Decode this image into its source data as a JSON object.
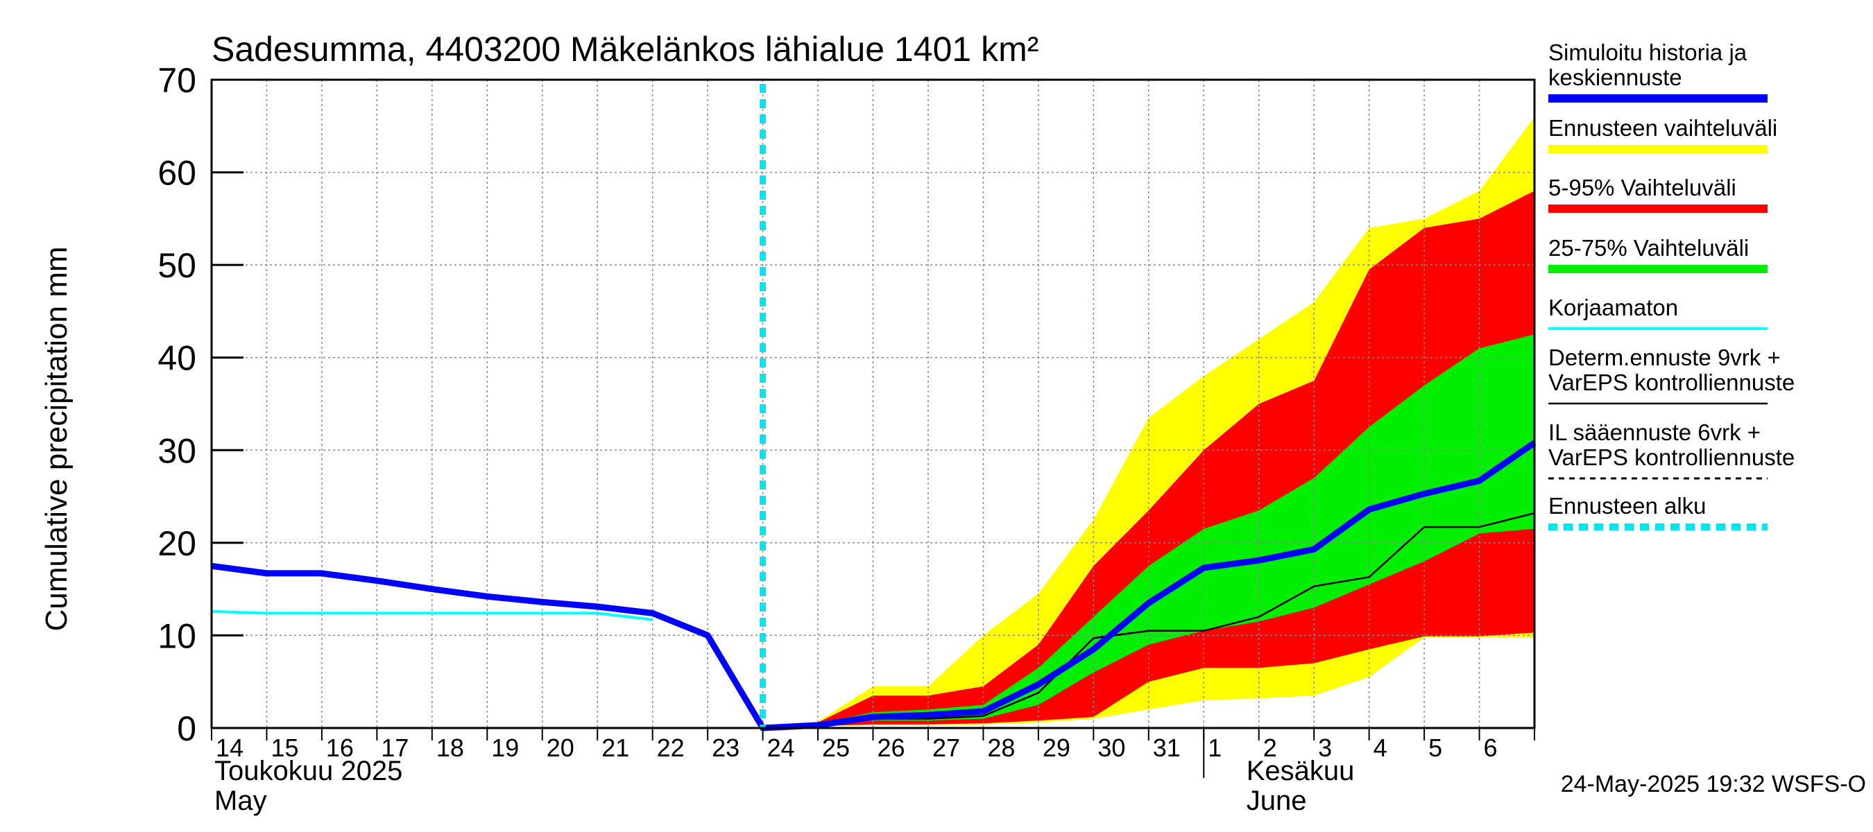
{
  "chart_data": {
    "type": "area",
    "title": "Sadesumma, 4403200 Mäkelänkos lähialue 1401 km²",
    "ylabel": "Cumulative precipitation   mm",
    "ylim": [
      0,
      70
    ],
    "yticks": [
      0,
      10,
      20,
      30,
      40,
      50,
      60,
      70
    ],
    "xlim": [
      "2025-05-14",
      "2025-06-07"
    ],
    "x_day_labels": [
      "14",
      "15",
      "16",
      "17",
      "18",
      "19",
      "20",
      "21",
      "22",
      "23",
      "24",
      "25",
      "26",
      "27",
      "28",
      "29",
      "30",
      "31",
      "1",
      "2",
      "3",
      "4",
      "5",
      "6"
    ],
    "month_labels": {
      "may_fi": "Toukokuu  2025",
      "may_en": "May",
      "june_fi": "Kesäkuu",
      "june_en": "June"
    },
    "forecast_start": "2025-05-24",
    "timestamp": "24-May-2025 19:32 WSFS-O",
    "grid": true,
    "legend_position": "right",
    "colors": {
      "sim": "#0000ff",
      "range": "#ffff00",
      "p5_95": "#ff0000",
      "p25_75": "#00ee00",
      "uncorrected": "#00ffff",
      "determ": "#000000",
      "forecast_start": "#00e5ee"
    },
    "forecast_dates": [
      "2025-05-24",
      "2025-05-25",
      "2025-05-26",
      "2025-05-27",
      "2025-05-28",
      "2025-05-29",
      "2025-05-30",
      "2025-05-31",
      "2025-06-01",
      "2025-06-02",
      "2025-06-03",
      "2025-06-04",
      "2025-06-05",
      "2025-06-06",
      "2025-06-07"
    ],
    "bands": {
      "range": {
        "upper": [
          0,
          0.7,
          4.5,
          4.5,
          10,
          14.5,
          22.5,
          33.5,
          38,
          42,
          46,
          54,
          55,
          58,
          66
        ],
        "lower": [
          0,
          0.2,
          0.3,
          0.3,
          0.4,
          0.6,
          1,
          2,
          3,
          3.2,
          3.5,
          5.5,
          9.8,
          9.8,
          9.8
        ]
      },
      "p5_95": {
        "upper": [
          0,
          0.6,
          3.5,
          3.5,
          4.5,
          9,
          17.5,
          23.5,
          30,
          35,
          37.5,
          49.5,
          54,
          55,
          58
        ],
        "lower": [
          0,
          0.2,
          0.4,
          0.4,
          0.5,
          0.8,
          1.2,
          5,
          6.5,
          6.5,
          7,
          8.5,
          9.9,
          9.9,
          10.3
        ]
      },
      "p25_75": {
        "upper": [
          0,
          0.5,
          1.7,
          2,
          2.5,
          6.5,
          12,
          17.5,
          21.5,
          23.5,
          27,
          32.5,
          37,
          41,
          42.5
        ],
        "lower": [
          0,
          0.3,
          0.8,
          0.8,
          1,
          2.5,
          6,
          9,
          10.5,
          11.5,
          13,
          15.5,
          18,
          21,
          21.5
        ]
      }
    },
    "series": [
      {
        "name": "Simuloitu historia ja keskiennuste",
        "x": [
          "2025-05-14",
          "2025-05-15",
          "2025-05-16",
          "2025-05-17",
          "2025-05-18",
          "2025-05-19",
          "2025-05-20",
          "2025-05-21",
          "2025-05-22",
          "2025-05-23",
          "2025-05-24",
          "2025-05-25",
          "2025-05-26",
          "2025-05-27",
          "2025-05-28",
          "2025-05-29",
          "2025-05-30",
          "2025-05-31",
          "2025-06-01",
          "2025-06-02",
          "2025-06-03",
          "2025-06-04",
          "2025-06-05",
          "2025-06-06",
          "2025-06-07"
        ],
        "y": [
          17.5,
          16.7,
          16.7,
          15.9,
          15,
          14.2,
          13.6,
          13.1,
          12.4,
          10,
          0,
          0.3,
          1.2,
          1.4,
          1.8,
          4.7,
          8.5,
          13.5,
          17.3,
          18.1,
          19.3,
          23.6,
          25.3,
          26.7,
          30.8
        ]
      },
      {
        "name": "Korjaamaton",
        "x": [
          "2025-05-14",
          "2025-05-15",
          "2025-05-16",
          "2025-05-17",
          "2025-05-18",
          "2025-05-19",
          "2025-05-20",
          "2025-05-21",
          "2025-05-22"
        ],
        "y": [
          12.6,
          12.4,
          12.4,
          12.4,
          12.4,
          12.4,
          12.4,
          12.4,
          11.7
        ]
      },
      {
        "name": "Determ.ennuste 9vrk + VarEPS kontrolliennuste",
        "x": [
          "2025-05-24",
          "2025-05-25",
          "2025-05-26",
          "2025-05-27",
          "2025-05-28",
          "2025-05-29",
          "2025-05-30",
          "2025-05-31",
          "2025-06-01",
          "2025-06-02",
          "2025-06-03",
          "2025-06-04",
          "2025-06-05",
          "2025-06-06",
          "2025-06-07"
        ],
        "y": [
          0,
          0.3,
          1,
          1,
          1.3,
          3.8,
          9.7,
          10.5,
          10.5,
          12,
          15.3,
          16.3,
          21.7,
          21.7,
          23.2
        ]
      }
    ],
    "legend": [
      {
        "key": "sim",
        "lines": [
          "Simuloitu historia ja",
          "keskiennuste"
        ],
        "style": "thick"
      },
      {
        "key": "range",
        "lines": [
          "Ennusteen vaihteluväli"
        ],
        "style": "thick"
      },
      {
        "key": "p5_95",
        "lines": [
          "5-95% Vaihteluväli"
        ],
        "style": "thick"
      },
      {
        "key": "p25_75",
        "lines": [
          "25-75% Vaihteluväli"
        ],
        "style": "thick"
      },
      {
        "key": "uncorrected",
        "lines": [
          "Korjaamaton"
        ],
        "style": "thin"
      },
      {
        "key": "determ",
        "lines": [
          "Determ.ennuste 9vrk +",
          "VarEPS kontrolliennuste"
        ],
        "style": "thin"
      },
      {
        "key": "determ",
        "lines": [
          "IL sääennuste 6vrk  +",
          "  VarEPS kontrolliennuste"
        ],
        "style": "dashed"
      },
      {
        "key": "forecast_start",
        "lines": [
          "Ennusteen alku"
        ],
        "style": "dotted"
      }
    ]
  }
}
